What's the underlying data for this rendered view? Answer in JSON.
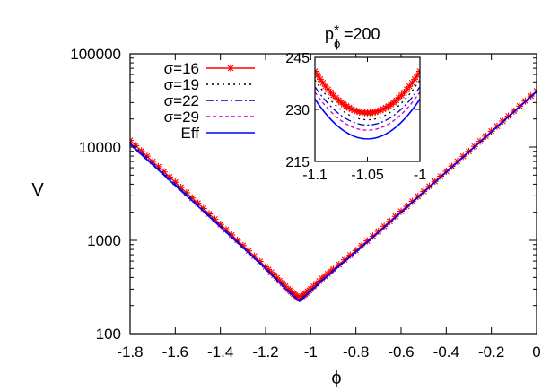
{
  "chart_data": [
    {
      "type": "line",
      "title": "",
      "title_parts": {
        "base": "p",
        "sub": "ϕ",
        "sup": "*",
        "value": "=200"
      },
      "xlabel": "ϕ",
      "ylabel": "V",
      "xlim": [
        -1.8,
        0
      ],
      "ylim": [
        100,
        100000
      ],
      "yscale": "log",
      "grid": false,
      "legend_position": "top-left",
      "xticks": [
        {
          "v": -1.8,
          "label": "-1.8"
        },
        {
          "v": -1.6,
          "label": "-1.6"
        },
        {
          "v": -1.4,
          "label": "-1.4"
        },
        {
          "v": -1.2,
          "label": "-1.2"
        },
        {
          "v": -1.0,
          "label": "-1"
        },
        {
          "v": -0.8,
          "label": "-0.8"
        },
        {
          "v": -0.6,
          "label": "-0.6"
        },
        {
          "v": -0.4,
          "label": "-0.4"
        },
        {
          "v": -0.2,
          "label": "-0.2"
        },
        {
          "v": 0,
          "label": "0"
        }
      ],
      "yticks": [
        {
          "v": 100,
          "label": "100"
        },
        {
          "v": 1000,
          "label": "1000"
        },
        {
          "v": 10000,
          "label": "10000"
        },
        {
          "v": 100000,
          "label": "100000"
        }
      ],
      "x": [
        -1.8,
        -1.7,
        -1.6,
        -1.5,
        -1.4,
        -1.3,
        -1.2,
        -1.15,
        -1.1,
        -1.075,
        -1.05,
        -1.025,
        -1.0,
        -0.95,
        -0.9,
        -0.8,
        -0.7,
        -0.6,
        -0.5,
        -0.4,
        -0.3,
        -0.2,
        -0.1,
        0
      ],
      "series": [
        {
          "name": "σ=16",
          "color": "#ff0000",
          "style": "solid-star",
          "values": [
            11800,
            7000,
            4200,
            2500,
            1480,
            880,
            520,
            395,
            300,
            265,
            238,
            265,
            300,
            390,
            490,
            780,
            1250,
            2050,
            3350,
            5500,
            9000,
            14800,
            24300,
            40000
          ]
        },
        {
          "name": "σ=19",
          "color": "#000000",
          "style": "dotted",
          "values": [
            11300,
            6750,
            4050,
            2420,
            1440,
            860,
            510,
            385,
            292,
            258,
            230,
            258,
            292,
            380,
            480,
            765,
            1230,
            2020,
            3300,
            5420,
            8900,
            14600,
            24000,
            39500
          ]
        },
        {
          "name": "σ=22",
          "color": "#0000cc",
          "style": "dash-dot",
          "values": [
            11100,
            6650,
            3990,
            2390,
            1420,
            850,
            505,
            382,
            289,
            256,
            227,
            256,
            289,
            376,
            476,
            760,
            1225,
            2010,
            3290,
            5400,
            8870,
            14550,
            23950,
            39400
          ]
        },
        {
          "name": "σ=29",
          "color": "#cc00cc",
          "style": "dashed",
          "values": [
            10900,
            6550,
            3930,
            2360,
            1405,
            842,
            500,
            378,
            286,
            253,
            224,
            253,
            286,
            372,
            472,
            755,
            1220,
            2000,
            3280,
            5390,
            8850,
            14500,
            23900,
            39300
          ]
        },
        {
          "name": "Eff",
          "color": "#0000ff",
          "style": "solid",
          "values": [
            10700,
            6450,
            3870,
            2330,
            1390,
            835,
            497,
            375,
            283,
            250,
            222,
            250,
            283,
            369,
            468,
            750,
            1215,
            1995,
            3270,
            5380,
            8830,
            14480,
            23880,
            39250
          ]
        }
      ]
    },
    {
      "type": "line",
      "title": "",
      "xlim": [
        -1.1,
        -1.0
      ],
      "ylim": [
        215,
        245
      ],
      "xticks": [
        {
          "v": -1.1,
          "label": "-1.1"
        },
        {
          "v": -1.05,
          "label": "-1.05"
        },
        {
          "v": -1.0,
          "label": "-1"
        }
      ],
      "yticks": [
        {
          "v": 215,
          "label": "215"
        },
        {
          "v": 230,
          "label": "230"
        },
        {
          "v": 245,
          "label": "245"
        }
      ],
      "curves": [
        {
          "name": "σ=16",
          "color": "#ff0000",
          "style": "solid-star",
          "min": 229,
          "edge": 241
        },
        {
          "name": "σ=19",
          "color": "#000000",
          "style": "dotted",
          "min": 227,
          "edge": 238.5
        },
        {
          "name": "σ=22",
          "color": "#0000cc",
          "style": "dash-dot",
          "min": 225.5,
          "edge": 236.5
        },
        {
          "name": "σ=29",
          "color": "#cc00cc",
          "style": "dashed",
          "min": 224,
          "edge": 235
        },
        {
          "name": "Eff",
          "color": "#0000ff",
          "style": "solid",
          "min": 221.5,
          "edge": 233
        }
      ]
    }
  ]
}
